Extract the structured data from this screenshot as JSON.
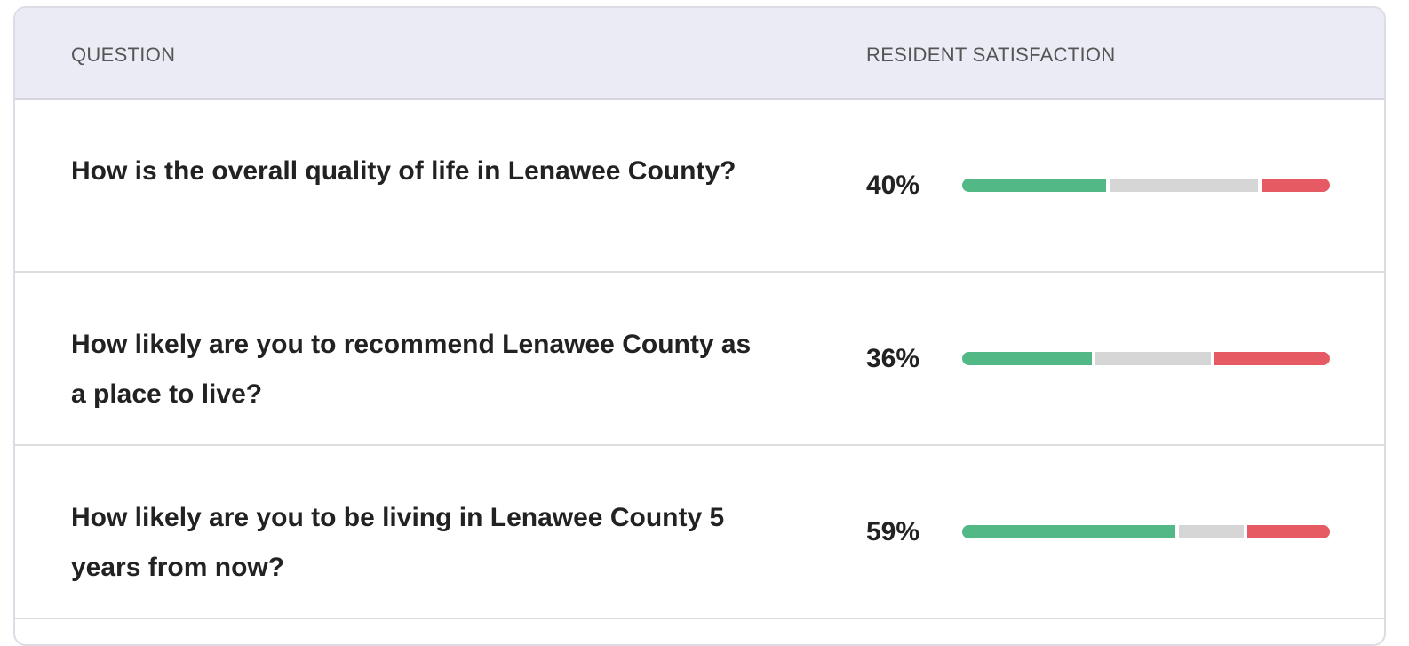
{
  "header": {
    "question": "QUESTION",
    "satisfaction": "RESIDENT SATISFACTION"
  },
  "rows": [
    {
      "question": "How is the overall quality of life in Lenawee County?",
      "label": "40%",
      "positive": 40,
      "neutral": 41,
      "negative": 19
    },
    {
      "question": "How likely are you to recommend Lenawee County as a place to live?",
      "label": "36%",
      "positive": 36,
      "neutral": 32,
      "negative": 32
    },
    {
      "question": "How likely are you to be living in Lenawee County 5 years from now?",
      "label": "59%",
      "positive": 59,
      "neutral": 18,
      "negative": 23
    }
  ],
  "colors": {
    "positive": "#52b886",
    "neutral": "#d6d6d6",
    "negative": "#e65a64"
  }
}
